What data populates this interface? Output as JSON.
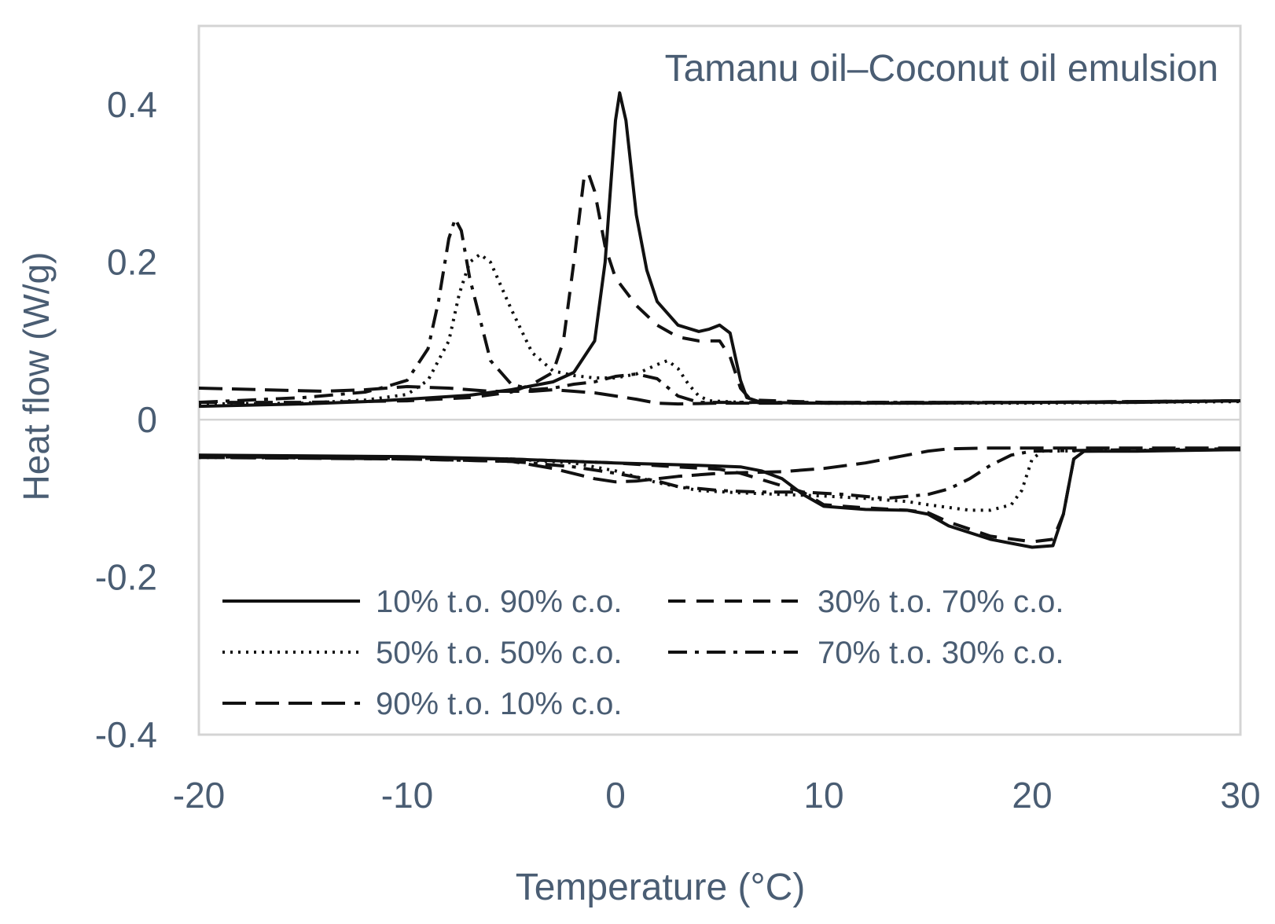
{
  "chart_data": {
    "type": "line",
    "title": "Tamanu oil–Coconut oil emulsion",
    "xlabel": "Temperature  (°C)",
    "ylabel": "Heat flow (W/g)",
    "xlim": [
      -20,
      30
    ],
    "ylim": [
      -0.4,
      0.5
    ],
    "xticks": [
      -20,
      -10,
      0,
      10,
      20,
      30
    ],
    "xtick_labels": [
      "-20",
      "-10",
      "0",
      "10",
      "20",
      "30"
    ],
    "yticks": [
      -0.4,
      -0.2,
      0,
      0.2,
      0.4
    ],
    "ytick_labels": [
      "-0.4",
      "-0.2",
      "0",
      "0.2",
      "0.4"
    ],
    "grid": false,
    "legend_position": "bottom-left",
    "colors": {
      "axis_text": "#4a5d73",
      "frame": "#d4d4d4",
      "series": "#111111"
    },
    "series": [
      {
        "name": "10% t.o. 90% c.o.",
        "style": "solid",
        "segments": [
          {
            "part": "cooling",
            "points": [
              [
                -20,
                0.017
              ],
              [
                -15,
                0.02
              ],
              [
                -12,
                0.023
              ],
              [
                -10,
                0.026
              ],
              [
                -7,
                0.031
              ],
              [
                -5,
                0.038
              ],
              [
                -3,
                0.048
              ],
              [
                -2,
                0.06
              ],
              [
                -1,
                0.1
              ],
              [
                -0.5,
                0.2
              ],
              [
                0,
                0.38
              ],
              [
                0.2,
                0.415
              ],
              [
                0.5,
                0.38
              ],
              [
                1,
                0.26
              ],
              [
                1.5,
                0.19
              ],
              [
                2,
                0.15
              ],
              [
                3,
                0.12
              ],
              [
                4,
                0.112
              ],
              [
                4.5,
                0.115
              ],
              [
                5,
                0.12
              ],
              [
                5.5,
                0.11
              ],
              [
                6,
                0.05
              ],
              [
                6.3,
                0.028
              ],
              [
                7,
                0.022
              ],
              [
                10,
                0.021
              ],
              [
                15,
                0.021
              ],
              [
                20,
                0.022
              ],
              [
                25,
                0.022
              ],
              [
                30,
                0.024
              ]
            ]
          },
          {
            "part": "heating",
            "points": [
              [
                -20,
                -0.045
              ],
              [
                -10,
                -0.047
              ],
              [
                -5,
                -0.05
              ],
              [
                0,
                -0.055
              ],
              [
                4,
                -0.058
              ],
              [
                6,
                -0.06
              ],
              [
                7,
                -0.065
              ],
              [
                8,
                -0.075
              ],
              [
                9,
                -0.095
              ],
              [
                10,
                -0.11
              ],
              [
                12,
                -0.114
              ],
              [
                14,
                -0.115
              ],
              [
                15,
                -0.12
              ],
              [
                16,
                -0.135
              ],
              [
                18,
                -0.152
              ],
              [
                20,
                -0.162
              ],
              [
                21,
                -0.16
              ],
              [
                21.5,
                -0.12
              ],
              [
                22,
                -0.05
              ],
              [
                22.5,
                -0.04
              ],
              [
                25,
                -0.04
              ],
              [
                30,
                -0.038
              ]
            ]
          }
        ]
      },
      {
        "name": "30% t.o. 70% c.o.",
        "style": "dashed",
        "segments": [
          {
            "part": "cooling",
            "points": [
              [
                -20,
                0.022
              ],
              [
                -15,
                0.022
              ],
              [
                -10,
                0.024
              ],
              [
                -7,
                0.028
              ],
              [
                -5,
                0.035
              ],
              [
                -4,
                0.045
              ],
              [
                -3,
                0.06
              ],
              [
                -2.5,
                0.1
              ],
              [
                -2,
                0.2
              ],
              [
                -1.5,
                0.31
              ],
              [
                -1.3,
                0.313
              ],
              [
                -1,
                0.29
              ],
              [
                -0.5,
                0.22
              ],
              [
                0,
                0.18
              ],
              [
                1,
                0.145
              ],
              [
                2,
                0.12
              ],
              [
                3,
                0.105
              ],
              [
                4,
                0.1
              ],
              [
                5,
                0.1
              ],
              [
                5.5,
                0.08
              ],
              [
                6,
                0.04
              ],
              [
                6.5,
                0.025
              ],
              [
                10,
                0.022
              ],
              [
                20,
                0.022
              ],
              [
                30,
                0.024
              ]
            ]
          },
          {
            "part": "heating",
            "points": [
              [
                -20,
                -0.047
              ],
              [
                -10,
                -0.049
              ],
              [
                -5,
                -0.05
              ],
              [
                0,
                -0.055
              ],
              [
                3,
                -0.06
              ],
              [
                5,
                -0.063
              ],
              [
                6,
                -0.068
              ],
              [
                7,
                -0.076
              ],
              [
                9,
                -0.092
              ],
              [
                10,
                -0.108
              ],
              [
                12,
                -0.112
              ],
              [
                14,
                -0.115
              ],
              [
                15,
                -0.118
              ],
              [
                16,
                -0.13
              ],
              [
                18,
                -0.148
              ],
              [
                20,
                -0.155
              ],
              [
                21,
                -0.152
              ],
              [
                21.5,
                -0.12
              ],
              [
                22,
                -0.05
              ],
              [
                22.5,
                -0.04
              ],
              [
                30,
                -0.038
              ]
            ]
          }
        ]
      },
      {
        "name": "50% t.o. 50% c.o.",
        "style": "dotted",
        "segments": [
          {
            "part": "cooling",
            "points": [
              [
                -20,
                0.02
              ],
              [
                -15,
                0.021
              ],
              [
                -12,
                0.025
              ],
              [
                -10,
                0.032
              ],
              [
                -9,
                0.05
              ],
              [
                -8,
                0.1
              ],
              [
                -7.5,
                0.16
              ],
              [
                -7,
                0.2
              ],
              [
                -6.5,
                0.21
              ],
              [
                -6,
                0.2
              ],
              [
                -5,
                0.14
              ],
              [
                -4,
                0.085
              ],
              [
                -3,
                0.062
              ],
              [
                -2,
                0.056
              ],
              [
                -1,
                0.053
              ],
              [
                0,
                0.053
              ],
              [
                1,
                0.058
              ],
              [
                2,
                0.07
              ],
              [
                2.5,
                0.075
              ],
              [
                3,
                0.065
              ],
              [
                3.5,
                0.045
              ],
              [
                4,
                0.03
              ],
              [
                4.5,
                0.024
              ],
              [
                6,
                0.022
              ],
              [
                10,
                0.021
              ],
              [
                20,
                0.021
              ],
              [
                30,
                0.023
              ]
            ]
          },
          {
            "part": "heating",
            "points": [
              [
                -20,
                -0.048
              ],
              [
                -10,
                -0.049
              ],
              [
                -5,
                -0.05
              ],
              [
                -2,
                -0.055
              ],
              [
                0,
                -0.065
              ],
              [
                2,
                -0.08
              ],
              [
                4,
                -0.09
              ],
              [
                6,
                -0.093
              ],
              [
                8,
                -0.095
              ],
              [
                10,
                -0.097
              ],
              [
                12,
                -0.1
              ],
              [
                14,
                -0.104
              ],
              [
                15,
                -0.108
              ],
              [
                17,
                -0.115
              ],
              [
                18,
                -0.115
              ],
              [
                19,
                -0.108
              ],
              [
                19.5,
                -0.09
              ],
              [
                20,
                -0.05
              ],
              [
                20.5,
                -0.04
              ],
              [
                25,
                -0.039
              ],
              [
                30,
                -0.038
              ]
            ]
          }
        ]
      },
      {
        "name": "70% t.o. 30% c.o.",
        "style": "dashdot",
        "segments": [
          {
            "part": "cooling",
            "points": [
              [
                -20,
                0.022
              ],
              [
                -15,
                0.028
              ],
              [
                -12,
                0.035
              ],
              [
                -11,
                0.042
              ],
              [
                -10,
                0.05
              ],
              [
                -9,
                0.09
              ],
              [
                -8.5,
                0.15
              ],
              [
                -8,
                0.23
              ],
              [
                -7.7,
                0.255
              ],
              [
                -7.4,
                0.24
              ],
              [
                -7,
                0.18
              ],
              [
                -6,
                0.075
              ],
              [
                -5,
                0.045
              ],
              [
                -4,
                0.038
              ],
              [
                -3,
                0.04
              ],
              [
                -2,
                0.045
              ],
              [
                -1,
                0.048
              ],
              [
                0,
                0.055
              ],
              [
                1,
                0.058
              ],
              [
                2,
                0.052
              ],
              [
                3,
                0.03
              ],
              [
                4,
                0.022
              ],
              [
                10,
                0.022
              ],
              [
                20,
                0.022
              ],
              [
                30,
                0.024
              ]
            ]
          },
          {
            "part": "heating",
            "points": [
              [
                -20,
                -0.047
              ],
              [
                -10,
                -0.05
              ],
              [
                -5,
                -0.053
              ],
              [
                -2,
                -0.06
              ],
              [
                0,
                -0.068
              ],
              [
                2,
                -0.078
              ],
              [
                3,
                -0.085
              ],
              [
                5,
                -0.09
              ],
              [
                7,
                -0.092
              ],
              [
                9,
                -0.092
              ],
              [
                11,
                -0.095
              ],
              [
                13,
                -0.1
              ],
              [
                15,
                -0.095
              ],
              [
                16,
                -0.088
              ],
              [
                17,
                -0.075
              ],
              [
                18,
                -0.058
              ],
              [
                19,
                -0.045
              ],
              [
                20,
                -0.04
              ],
              [
                25,
                -0.038
              ],
              [
                30,
                -0.037
              ]
            ]
          }
        ]
      },
      {
        "name": "90% t.o. 10% c.o.",
        "style": "longdash",
        "segments": [
          {
            "part": "cooling",
            "points": [
              [
                -20,
                0.04
              ],
              [
                -17,
                0.038
              ],
              [
                -14,
                0.036
              ],
              [
                -12,
                0.038
              ],
              [
                -10,
                0.042
              ],
              [
                -8,
                0.04
              ],
              [
                -6,
                0.036
              ],
              [
                -4,
                0.036
              ],
              [
                -3,
                0.038
              ],
              [
                -2,
                0.036
              ],
              [
                -1,
                0.034
              ],
              [
                0,
                0.03
              ],
              [
                1,
                0.026
              ],
              [
                2,
                0.021
              ],
              [
                3,
                0.02
              ],
              [
                5,
                0.021
              ],
              [
                10,
                0.021
              ],
              [
                20,
                0.022
              ],
              [
                30,
                0.024
              ]
            ]
          },
          {
            "part": "heating",
            "points": [
              [
                -20,
                -0.048
              ],
              [
                -10,
                -0.05
              ],
              [
                -5,
                -0.053
              ],
              [
                -3,
                -0.062
              ],
              [
                -1,
                -0.075
              ],
              [
                0,
                -0.079
              ],
              [
                1,
                -0.078
              ],
              [
                3,
                -0.072
              ],
              [
                5,
                -0.068
              ],
              [
                8,
                -0.066
              ],
              [
                10,
                -0.062
              ],
              [
                12,
                -0.055
              ],
              [
                14,
                -0.045
              ],
              [
                15,
                -0.04
              ],
              [
                16,
                -0.037
              ],
              [
                18,
                -0.036
              ],
              [
                20,
                -0.036
              ],
              [
                25,
                -0.036
              ],
              [
                30,
                -0.036
              ]
            ]
          }
        ]
      }
    ]
  }
}
